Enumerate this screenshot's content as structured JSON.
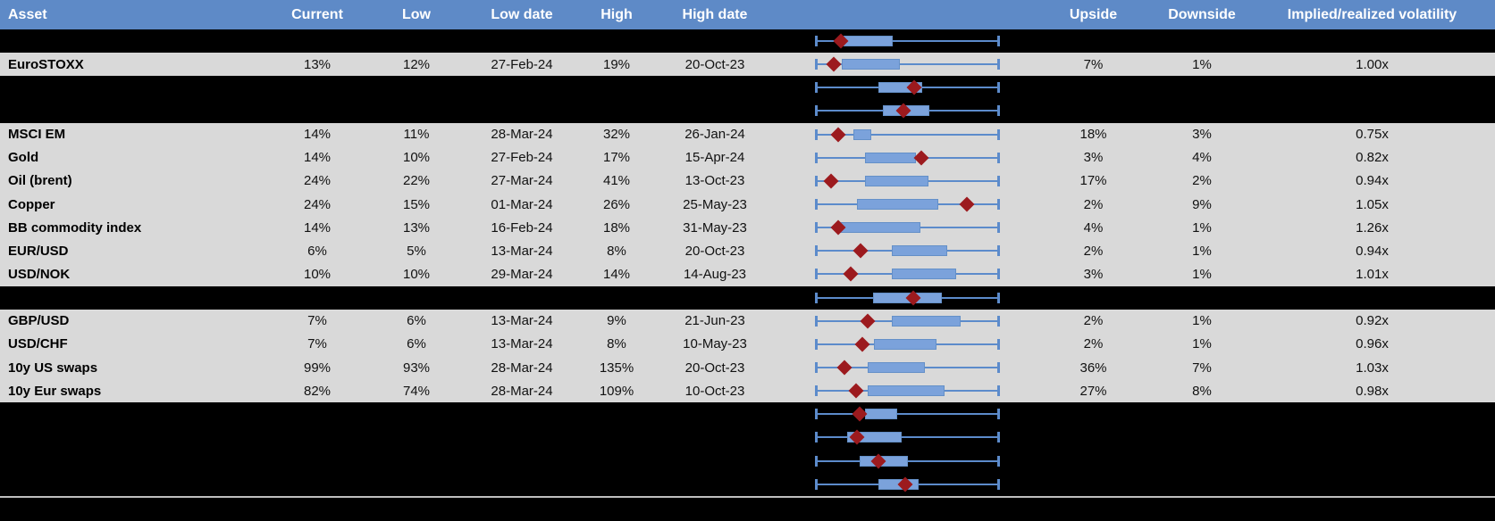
{
  "header": {
    "columns": [
      "Asset",
      "Current",
      "Low",
      "Low date",
      "High",
      "High date",
      "",
      "Upside",
      "Downside",
      "Implied/realized volatility"
    ]
  },
  "colors": {
    "header_bg": "#5E8AC7",
    "header_text": "#FFFFFF",
    "row_light_bg": "#D9D9D9",
    "row_dark_bg": "#000000",
    "whisker": "#5C8BCB",
    "box_fill": "#7BA2DB",
    "box_border": "#6490C8",
    "diamond": "#9C1A1E",
    "separator": "#BFBFBF"
  },
  "chart_data": {
    "type": "table",
    "columns": [
      "Asset",
      "Current",
      "Low",
      "Low date",
      "High",
      "High date",
      "Implied volatility range (box-whisker)",
      "Upside",
      "Downside",
      "Implied/realized volatility"
    ],
    "boxplot_note": "Each row shows a horizontal box-whisker of the implied volatility range (whisker spans full scale 0-100%); blue box = inner range, red diamond = current level. Positions are percent of whisker span.",
    "boxplot_axis": {
      "min_pct": 0,
      "max_pct": 100
    },
    "rows": [
      {
        "asset": "",
        "current": "",
        "low": "",
        "low_date": "",
        "high": "",
        "high_date": "",
        "upside": "",
        "downside": "",
        "iv_ratio": "",
        "shade": "dark",
        "box": {
          "start_pct": 15.1,
          "end_pct": 41.0,
          "marker_pct": 13.7
        }
      },
      {
        "asset": "EuroSTOXX",
        "current": "13%",
        "low": "12%",
        "low_date": "27-Feb-24",
        "high": "19%",
        "high_date": "20-Oct-23",
        "upside": "7%",
        "downside": "1%",
        "iv_ratio": "1.00x",
        "shade": "light",
        "box": {
          "start_pct": 14.1,
          "end_pct": 44.9,
          "marker_pct": 9.8
        }
      },
      {
        "asset": "",
        "current": "",
        "low": "",
        "low_date": "",
        "high": "",
        "high_date": "",
        "upside": "",
        "downside": "",
        "iv_ratio": "",
        "shade": "dark",
        "box": {
          "start_pct": 34.1,
          "end_pct": 57.1,
          "marker_pct": 53.7
        }
      },
      {
        "asset": "",
        "current": "",
        "low": "",
        "low_date": "",
        "high": "",
        "high_date": "",
        "upside": "",
        "downside": "",
        "iv_ratio": "",
        "shade": "dark",
        "box": {
          "start_pct": 36.6,
          "end_pct": 61.0,
          "marker_pct": 47.8
        }
      },
      {
        "asset": "MSCI EM",
        "current": "14%",
        "low": "11%",
        "low_date": "28-Mar-24",
        "high": "32%",
        "high_date": "26-Jan-24",
        "upside": "18%",
        "downside": "3%",
        "iv_ratio": "0.75x",
        "shade": "light",
        "box": {
          "start_pct": 20.5,
          "end_pct": 29.3,
          "marker_pct": 12.2
        }
      },
      {
        "asset": "Gold",
        "current": "14%",
        "low": "10%",
        "low_date": "27-Feb-24",
        "high": "17%",
        "high_date": "15-Apr-24",
        "upside": "3%",
        "downside": "4%",
        "iv_ratio": "0.82x",
        "shade": "light",
        "box": {
          "start_pct": 26.8,
          "end_pct": 53.7,
          "marker_pct": 57.6
        }
      },
      {
        "asset": "Oil (brent)",
        "current": "24%",
        "low": "22%",
        "low_date": "27-Mar-24",
        "high": "41%",
        "high_date": "13-Oct-23",
        "upside": "17%",
        "downside": "2%",
        "iv_ratio": "0.94x",
        "shade": "light",
        "box": {
          "start_pct": 26.8,
          "end_pct": 60.5,
          "marker_pct": 8.3
        }
      },
      {
        "asset": "Copper",
        "current": "24%",
        "low": "15%",
        "low_date": "01-Mar-24",
        "high": "26%",
        "high_date": "25-May-23",
        "upside": "2%",
        "downside": "9%",
        "iv_ratio": "1.05x",
        "shade": "light",
        "box": {
          "start_pct": 22.4,
          "end_pct": 65.9,
          "marker_pct": 82.4
        }
      },
      {
        "asset": "BB commodity index",
        "current": "14%",
        "low": "13%",
        "low_date": "16-Feb-24",
        "high": "18%",
        "high_date": "31-May-23",
        "upside": "4%",
        "downside": "1%",
        "iv_ratio": "1.26x",
        "shade": "light",
        "box": {
          "start_pct": 13.2,
          "end_pct": 56.1,
          "marker_pct": 12.2
        }
      },
      {
        "asset": "EUR/USD",
        "current": "6%",
        "low": "5%",
        "low_date": "13-Mar-24",
        "high": "8%",
        "high_date": "20-Oct-23",
        "upside": "2%",
        "downside": "1%",
        "iv_ratio": "0.94x",
        "shade": "light",
        "box": {
          "start_pct": 41.5,
          "end_pct": 70.7,
          "marker_pct": 24.4
        }
      },
      {
        "asset": "USD/NOK",
        "current": "10%",
        "low": "10%",
        "low_date": "29-Mar-24",
        "high": "14%",
        "high_date": "14-Aug-23",
        "upside": "3%",
        "downside": "1%",
        "iv_ratio": "1.01x",
        "shade": "light",
        "box": {
          "start_pct": 41.5,
          "end_pct": 75.6,
          "marker_pct": 19.0
        }
      },
      {
        "asset": "",
        "current": "",
        "low": "",
        "low_date": "",
        "high": "",
        "high_date": "",
        "upside": "",
        "downside": "",
        "iv_ratio": "",
        "shade": "dark",
        "box": {
          "start_pct": 31.2,
          "end_pct": 67.8,
          "marker_pct": 53.2
        }
      },
      {
        "asset": "GBP/USD",
        "current": "7%",
        "low": "6%",
        "low_date": "13-Mar-24",
        "high": "9%",
        "high_date": "21-Jun-23",
        "upside": "2%",
        "downside": "1%",
        "iv_ratio": "0.92x",
        "shade": "light",
        "box": {
          "start_pct": 41.5,
          "end_pct": 78.0,
          "marker_pct": 28.3
        }
      },
      {
        "asset": "USD/CHF",
        "current": "7%",
        "low": "6%",
        "low_date": "13-Mar-24",
        "high": "8%",
        "high_date": "10-May-23",
        "upside": "2%",
        "downside": "1%",
        "iv_ratio": "0.96x",
        "shade": "light",
        "box": {
          "start_pct": 31.7,
          "end_pct": 64.9,
          "marker_pct": 25.4
        }
      },
      {
        "asset": "10y US swaps",
        "current": "99%",
        "low": "93%",
        "low_date": "28-Mar-24",
        "high": "135%",
        "high_date": "20-Oct-23",
        "upside": "36%",
        "downside": "7%",
        "iv_ratio": "1.03x",
        "shade": "light",
        "box": {
          "start_pct": 28.3,
          "end_pct": 58.5,
          "marker_pct": 15.6
        }
      },
      {
        "asset": "10y Eur swaps",
        "current": "82%",
        "low": "74%",
        "low_date": "28-Mar-24",
        "high": "109%",
        "high_date": "10-Oct-23",
        "upside": "27%",
        "downside": "8%",
        "iv_ratio": "0.98x",
        "shade": "light",
        "box": {
          "start_pct": 28.3,
          "end_pct": 69.3,
          "marker_pct": 22.0
        }
      },
      {
        "asset": "",
        "current": "",
        "low": "",
        "low_date": "",
        "high": "",
        "high_date": "",
        "upside": "",
        "downside": "",
        "iv_ratio": "",
        "shade": "dark",
        "box": {
          "start_pct": 26.8,
          "end_pct": 43.4,
          "marker_pct": 23.9
        }
      },
      {
        "asset": "",
        "current": "",
        "low": "",
        "low_date": "",
        "high": "",
        "high_date": "",
        "upside": "",
        "downside": "",
        "iv_ratio": "",
        "shade": "dark",
        "box": {
          "start_pct": 17.1,
          "end_pct": 45.9,
          "marker_pct": 22.4
        }
      },
      {
        "asset": "",
        "current": "",
        "low": "",
        "low_date": "",
        "high": "",
        "high_date": "",
        "upside": "",
        "downside": "",
        "iv_ratio": "",
        "shade": "dark",
        "box": {
          "start_pct": 23.9,
          "end_pct": 49.3,
          "marker_pct": 34.1
        }
      },
      {
        "asset": "",
        "current": "",
        "low": "",
        "low_date": "",
        "high": "",
        "high_date": "",
        "upside": "",
        "downside": "",
        "iv_ratio": "",
        "shade": "dark",
        "box": {
          "start_pct": 34.1,
          "end_pct": 55.1,
          "marker_pct": 48.8
        }
      }
    ]
  }
}
